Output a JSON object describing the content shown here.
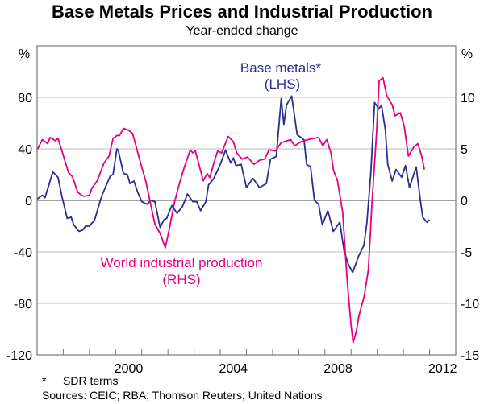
{
  "chart_data": {
    "type": "line",
    "title": "Base Metals Prices and Industrial Production",
    "subtitle": "Year-ended change",
    "left_axis": {
      "unit_label": "%",
      "ylim": [
        -120,
        120
      ],
      "ticks": [
        80,
        40,
        0,
        -40,
        -80,
        -120
      ]
    },
    "right_axis": {
      "unit_label": "%",
      "ylim": [
        -15,
        15
      ],
      "ticks": [
        10,
        5,
        0,
        -5,
        -10,
        -15
      ]
    },
    "x_axis": {
      "xlim": [
        1997,
        2013
      ],
      "tick_labels": [
        "2000",
        "2004",
        "2008",
        "2012"
      ]
    },
    "grid": true,
    "series": [
      {
        "name": "Base metals*",
        "axis_label": "(LHS)",
        "color": "#2b2e8f",
        "x": [
          1997.0,
          1997.2,
          1997.3,
          1997.6,
          1997.8,
          1997.95,
          1998.15,
          1998.3,
          1998.4,
          1998.6,
          1998.75,
          1998.85,
          1999.0,
          1999.2,
          1999.4,
          1999.5,
          1999.8,
          1999.9,
          2000.05,
          2000.1,
          2000.3,
          2000.45,
          2000.55,
          2000.7,
          2000.85,
          2001.0,
          2001.2,
          2001.35,
          2001.5,
          2001.7,
          2001.85,
          2001.95,
          2002.15,
          2002.35,
          2002.55,
          2002.75,
          2002.95,
          2003.1,
          2003.25,
          2003.45,
          2003.55,
          2003.75,
          2004.0,
          2004.2,
          2004.4,
          2004.5,
          2004.6,
          2004.8,
          2005.0,
          2005.25,
          2005.5,
          2005.76,
          2005.92,
          2006.14,
          2006.33,
          2006.43,
          2006.53,
          2006.73,
          2006.94,
          2007.2,
          2007.3,
          2007.45,
          2007.6,
          2007.76,
          2007.9,
          2008.11,
          2008.32,
          2008.57,
          2008.73,
          2008.88,
          2009.06,
          2009.29,
          2009.49,
          2009.6,
          2009.75,
          2009.9,
          2010.06,
          2010.16,
          2010.31,
          2010.4,
          2010.57,
          2010.72,
          2010.93,
          2011.08,
          2011.23,
          2011.49,
          2011.64,
          2011.74,
          2011.9,
          2012.0
        ],
        "values": [
          1,
          4,
          2,
          22,
          18,
          3,
          -14,
          -13,
          -19,
          -24,
          -23,
          -20,
          -20,
          -15,
          -1,
          5,
          19,
          20,
          40,
          39,
          21,
          20,
          13,
          15,
          6,
          -1,
          -3,
          0,
          -1,
          -21,
          -15,
          -14,
          -4,
          -10,
          -5,
          5,
          -1,
          -1,
          -8,
          -1,
          12,
          17,
          28,
          39,
          29,
          33,
          27,
          28,
          10,
          17,
          10,
          13,
          32,
          34,
          79,
          59,
          74,
          81,
          51,
          47,
          28,
          26,
          0,
          -3,
          -19,
          -8,
          -24,
          -17,
          -39,
          -49,
          -56,
          -43,
          -35,
          -18,
          20,
          76,
          71,
          74,
          55,
          28,
          15,
          24,
          18,
          27,
          10,
          26,
          1,
          -13,
          -17,
          -15
        ]
      },
      {
        "name": "World industrial production",
        "axis_label": "(RHS)",
        "color": "#e6007e",
        "x": [
          1997.0,
          1997.2,
          1997.4,
          1997.5,
          1997.7,
          1997.8,
          1997.95,
          1998.2,
          1998.35,
          1998.55,
          1998.7,
          1998.8,
          1999.0,
          1999.1,
          1999.3,
          1999.55,
          1999.75,
          1999.9,
          2000.05,
          2000.15,
          2000.3,
          2000.5,
          2000.65,
          2000.85,
          2001.0,
          2001.15,
          2001.3,
          2001.5,
          2001.7,
          2001.9,
          2002.05,
          2002.25,
          2002.4,
          2002.6,
          2002.85,
          2002.95,
          2003.05,
          2003.35,
          2003.5,
          2003.6,
          2003.75,
          2003.9,
          2004.05,
          2004.3,
          2004.5,
          2004.63,
          2004.84,
          2005.04,
          2005.29,
          2005.5,
          2005.7,
          2005.86,
          2006.11,
          2006.33,
          2006.69,
          2006.84,
          2007.1,
          2007.35,
          2007.76,
          2007.92,
          2008.07,
          2008.23,
          2008.33,
          2008.48,
          2008.68,
          2008.84,
          2009.0,
          2009.08,
          2009.2,
          2009.3,
          2009.5,
          2009.66,
          2009.8,
          2009.97,
          2010.07,
          2010.22,
          2010.37,
          2010.57,
          2010.68,
          2010.88,
          2011.03,
          2011.19,
          2011.4,
          2011.55,
          2011.7,
          2011.8
        ],
        "values": [
          4.9,
          5.9,
          5.5,
          6.1,
          5.8,
          6.0,
          4.8,
          2.7,
          2.3,
          0.8,
          0.5,
          0.4,
          0.5,
          1.2,
          1.9,
          3.6,
          4.3,
          6.0,
          6.3,
          6.3,
          7.0,
          6.8,
          6.5,
          4.6,
          3.2,
          1.9,
          0.1,
          -2.3,
          -3.2,
          -4.6,
          -2.8,
          -0.2,
          1.3,
          3.0,
          4.9,
          4.6,
          4.8,
          1.9,
          2.6,
          2.2,
          3.6,
          4.8,
          4.6,
          6.2,
          5.7,
          4.6,
          4.0,
          4.2,
          3.5,
          3.9,
          4.0,
          4.9,
          4.8,
          5.6,
          5.9,
          5.3,
          5.7,
          5.9,
          6.1,
          5.3,
          5.9,
          4.6,
          2.9,
          1.9,
          -1.2,
          -7.5,
          -12.2,
          -13.8,
          -12.7,
          -11.2,
          -9.3,
          -6.7,
          -0.2,
          6.4,
          11.6,
          11.9,
          10.1,
          9.3,
          8.2,
          8.5,
          7.2,
          4.3,
          5.2,
          5.5,
          4.3,
          3.0
        ]
      }
    ]
  },
  "footnotes": {
    "marker": "*",
    "note": "SDR terms",
    "sources": "Sources: CEIC; RBA; Thomson Reuters; United Nations"
  }
}
